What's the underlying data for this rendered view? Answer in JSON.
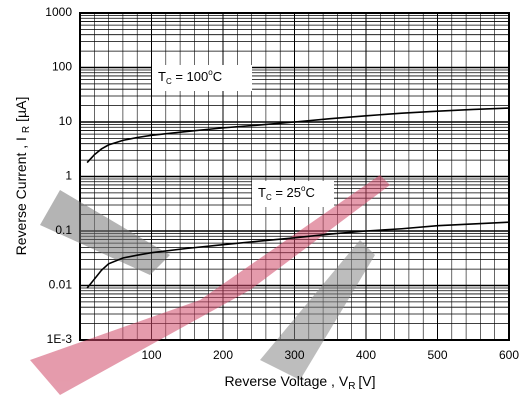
{
  "chart_data": {
    "type": "line",
    "x_label": {
      "text": "Reverse Voltage , V",
      "subscript": "R",
      "unit": "[V]"
    },
    "y_label": {
      "text": "Reverse Current , I",
      "subscript": "R",
      "unit": "[µA]"
    },
    "annotations": [
      {
        "text": "T",
        "subscript": "C",
        "rest": " = 100",
        "superscript": "o",
        "unit": "C"
      },
      {
        "text": "T",
        "subscript": "C",
        "rest": " = 25",
        "superscript": "o",
        "unit": "C"
      }
    ],
    "x": [
      10,
      20,
      30,
      40,
      60,
      80,
      100,
      150,
      200,
      250,
      300,
      350,
      400,
      450,
      500,
      550,
      600
    ],
    "series": [
      {
        "name": "TC = 100°C",
        "color": "#000000",
        "values": [
          1.8,
          2.5,
          3.2,
          3.8,
          4.6,
          5.2,
          5.7,
          6.7,
          7.8,
          8.8,
          10,
          11.5,
          13,
          14.5,
          15.8,
          17,
          18
        ]
      },
      {
        "name": "TC = 25°C",
        "color": "#000000",
        "values": [
          0.009,
          0.013,
          0.019,
          0.025,
          0.032,
          0.036,
          0.04,
          0.048,
          0.056,
          0.065,
          0.075,
          0.088,
          0.1,
          0.11,
          0.125,
          0.135,
          0.145
        ]
      }
    ],
    "xlim": [
      0,
      600
    ],
    "xticks": [
      100,
      200,
      300,
      400,
      500,
      600
    ],
    "ylim": [
      0.001,
      1000
    ],
    "y_scale": "log",
    "yticks": [
      {
        "value": 0.001,
        "label": "1E-3"
      },
      0.01,
      0.1,
      1,
      10,
      100,
      1000
    ],
    "grid": true,
    "minor_grid": true
  }
}
